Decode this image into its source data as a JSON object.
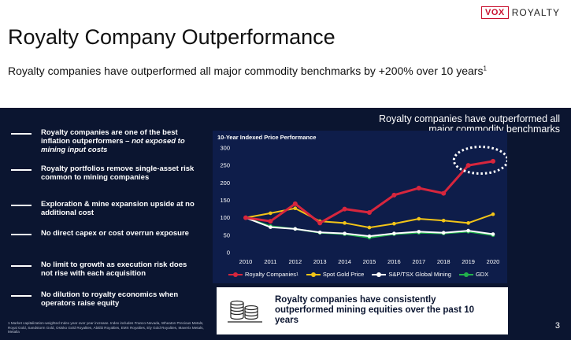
{
  "logo": {
    "box": "VOX",
    "text": "ROYALTY",
    "color": "#c8102e"
  },
  "title": "Royalty Company Outperformance",
  "subtitle": "Royalty companies have outperformed all major commodity benchmarks by +200% over 10 years",
  "subtitle_sup": "1",
  "bullets": [
    {
      "text": "Royalty companies are one of the best inflation outperformers – ",
      "italic": "not exposed to mining input costs"
    },
    {
      "text": "Royalty portfolios remove single-asset risk common to mining companies",
      "italic": ""
    },
    {
      "text": "Exploration & mine expansion upside at no additional cost",
      "italic": ""
    },
    {
      "text": "No direct capex or cost overrun exposure",
      "italic": ""
    },
    {
      "text": "No limit to growth as execution risk does not rise with each acquisition",
      "italic": ""
    },
    {
      "text": "No dilution to royalty economics when operators raise equity",
      "italic": ""
    }
  ],
  "callout": "Royalty companies have outperformed all major commodity benchmarks",
  "footnote": "1 Market capitalization-weighted Index year over year increase. Index includes Franco-Nevada, Wheaton Precious Metals, Royal Gold, Sandstorm Gold, Osisko Gold Royalties, Abitibi Royalties, EMX Royalties, Ely Gold Royalties, Maverix Metals, Metalla",
  "bottom_text": "Royalty companies have consistently outperformed mining equities over the past 10 years",
  "page_number": "3",
  "chart_data": {
    "type": "line",
    "title": "10-Year Indexed Price Performance",
    "x": [
      2010,
      2011,
      2012,
      2013,
      2014,
      2015,
      2016,
      2017,
      2018,
      2019,
      2020
    ],
    "ylim": [
      0,
      300
    ],
    "yticks": [
      0,
      50,
      100,
      150,
      200,
      250,
      300
    ],
    "grid": false,
    "legend": "bottom",
    "series": [
      {
        "name": "Royalty Companies",
        "sup": "1",
        "color": "#d7263d",
        "values": [
          100,
          90,
          140,
          85,
          125,
          115,
          165,
          185,
          170,
          250,
          262
        ]
      },
      {
        "name": "Spot Gold Price",
        "sup": "",
        "color": "#f2c418",
        "values": [
          100,
          113,
          127,
          90,
          85,
          72,
          83,
          97,
          92,
          85,
          110
        ]
      },
      {
        "name": "S&P/TSX Global Mining",
        "sup": "",
        "color": "#ffffff",
        "values": [
          100,
          73,
          68,
          58,
          55,
          47,
          55,
          60,
          57,
          63,
          53
        ]
      },
      {
        "name": "GDX",
        "sup": "",
        "color": "#22b14c",
        "values": [
          100,
          76,
          68,
          57,
          53,
          43,
          53,
          57,
          55,
          60,
          50
        ]
      }
    ]
  }
}
